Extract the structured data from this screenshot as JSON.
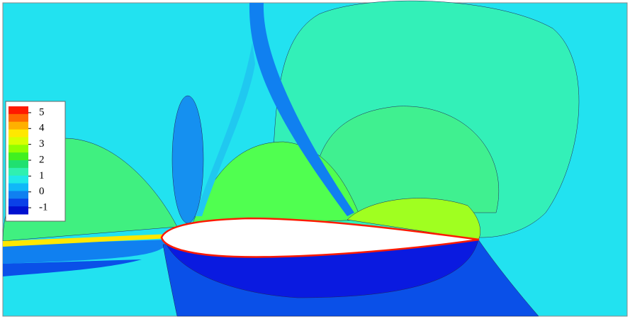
{
  "legend": {
    "ticks": [
      5,
      4,
      3,
      2,
      1,
      0,
      -1
    ],
    "range": [
      -1.4,
      5.4
    ],
    "colors": [
      "#ff1a00",
      "#ff6a00",
      "#ffb000",
      "#ffe800",
      "#d8ff00",
      "#90ff00",
      "#40f020",
      "#20e070",
      "#30f0b0",
      "#20e8e8",
      "#10b8f8",
      "#1080f0",
      "#0a40e8",
      "#0010d0"
    ]
  }
}
